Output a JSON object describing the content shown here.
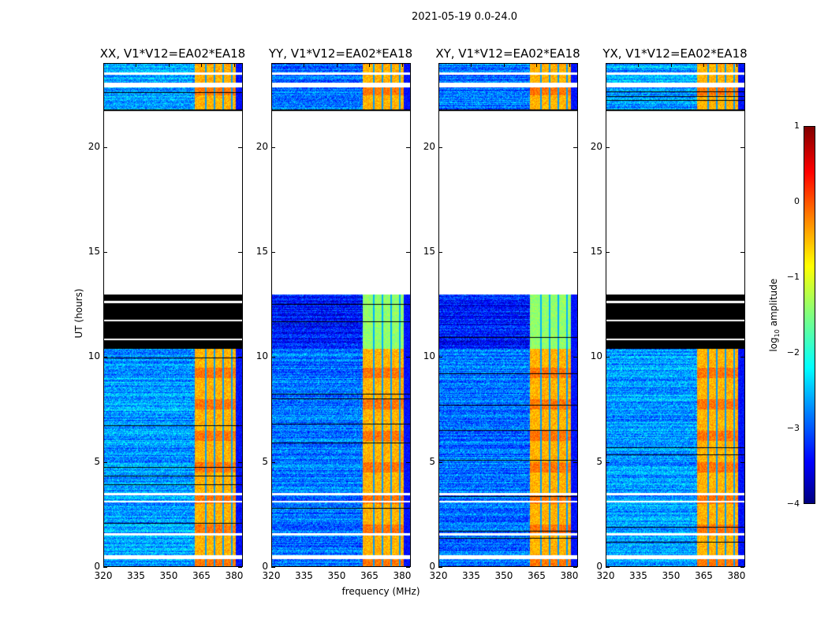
{
  "chart_data": {
    "type": "heatmap",
    "title": "2021-05-19 0.0-24.0",
    "xlabel": "frequency (MHz)",
    "ylabel": "UT (hours)",
    "xlim": [
      320,
      384
    ],
    "ylim": [
      0,
      24
    ],
    "xticks": [
      "320",
      "335",
      "350",
      "365",
      "380"
    ],
    "yticks": [
      "0",
      "5",
      "10",
      "15",
      "20"
    ],
    "panels": [
      {
        "title": "XX, V1*V12=EA02*EA18",
        "flagged_black_hours": [
          10.4,
          13.0
        ],
        "base_level": -2.6
      },
      {
        "title": "YY, V1*V12=EA02*EA18",
        "flagged_black_hours": null,
        "base_level": -2.8
      },
      {
        "title": "XY, V1*V12=EA02*EA18",
        "flagged_black_hours": null,
        "base_level": -2.8
      },
      {
        "title": "YX, V1*V12=EA02*EA18",
        "flagged_black_hours": [
          10.4,
          13.0
        ],
        "base_level": -2.6
      }
    ],
    "no_data_hours": [
      [
        0.35,
        0.55
      ],
      [
        1.5,
        1.6
      ],
      [
        3.05,
        3.15
      ],
      [
        3.4,
        3.5
      ],
      [
        13.0,
        21.8
      ],
      [
        22.9,
        23.1
      ],
      [
        23.5,
        23.6
      ]
    ],
    "rfi_band_mhz": [
      362,
      381
    ],
    "rfi_level": -0.5,
    "colorbar": {
      "label_main": "log",
      "label_sub": "10",
      "label_rest": " amplitude",
      "ticks": [
        "1",
        "0",
        "−1",
        "−2",
        "−3",
        "−4"
      ],
      "range": [
        -4,
        1
      ],
      "colormap": "jet"
    }
  }
}
